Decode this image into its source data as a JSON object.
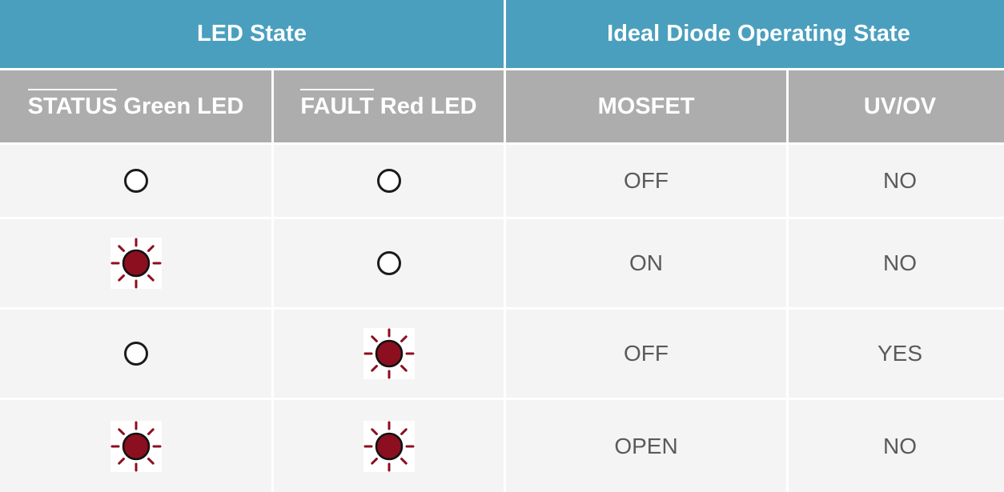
{
  "header": {
    "led_state": "LED State",
    "diode_state": "Ideal Diode Operating State"
  },
  "subheader": {
    "status_word": "STATUS",
    "status_rest": " Green LED",
    "fault_word": "FAULT",
    "fault_rest": " Red LED",
    "mosfet": "MOSFET",
    "uvov": "UV/OV"
  },
  "rows": [
    {
      "status_led": "off",
      "fault_led": "off",
      "mosfet": "OFF",
      "uvov": "NO"
    },
    {
      "status_led": "on",
      "fault_led": "off",
      "mosfet": "ON",
      "uvov": "NO"
    },
    {
      "status_led": "off",
      "fault_led": "on",
      "mosfet": "OFF",
      "uvov": "YES"
    },
    {
      "status_led": "on",
      "fault_led": "on",
      "mosfet": "OPEN",
      "uvov": "NO"
    }
  ],
  "icons": {
    "led_off": "led-off-icon",
    "led_on": "led-lit-icon"
  },
  "colors": {
    "header_bg": "#4a9fbe",
    "subheader_bg": "#adadad",
    "row_bg": "#f4f4f4",
    "led_on": "#8b0f1f"
  }
}
